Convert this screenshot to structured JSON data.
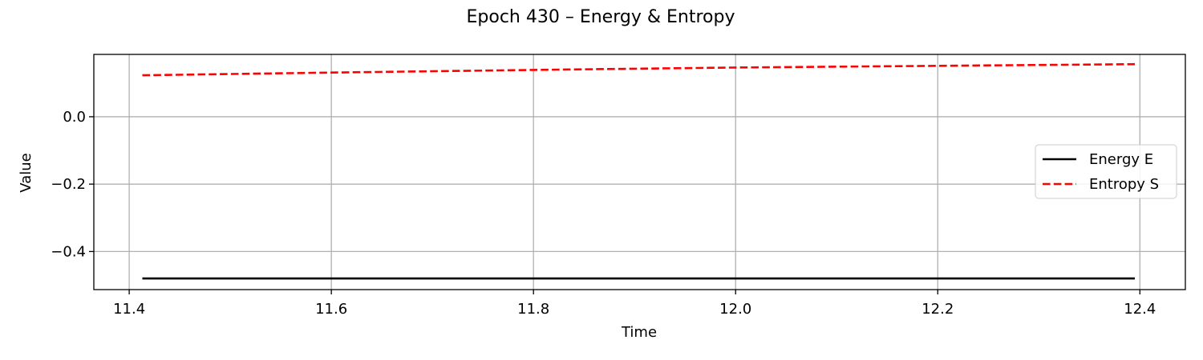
{
  "chart_data": {
    "type": "line",
    "title": "Epoch 430 – Energy & Entropy",
    "xlabel": "Time",
    "ylabel": "Value",
    "xlim": [
      11.365,
      12.445
    ],
    "ylim": [
      -0.513,
      0.185
    ],
    "x_ticks": [
      11.4,
      11.6,
      11.8,
      12.0,
      12.2,
      12.4
    ],
    "x_tick_labels": [
      "11.4",
      "11.6",
      "11.8",
      "12.0",
      "12.2",
      "12.4"
    ],
    "y_ticks": [
      0.0,
      -0.2,
      -0.4
    ],
    "y_tick_labels": [
      "0.0",
      "−0.2",
      "−0.4"
    ],
    "grid": true,
    "legend_position": "center-right",
    "series": [
      {
        "name": "Energy E",
        "color": "#000000",
        "dash": "solid",
        "x": [
          11.413,
          11.6,
          11.8,
          12.0,
          12.2,
          12.395
        ],
        "y": [
          -0.48,
          -0.48,
          -0.48,
          -0.48,
          -0.48,
          -0.48
        ]
      },
      {
        "name": "Entropy S",
        "color": "#ff0000",
        "dash": "dashed",
        "x": [
          11.413,
          11.6,
          11.8,
          12.0,
          12.2,
          12.395
        ],
        "y": [
          0.123,
          0.131,
          0.139,
          0.146,
          0.151,
          0.156
        ]
      }
    ]
  }
}
